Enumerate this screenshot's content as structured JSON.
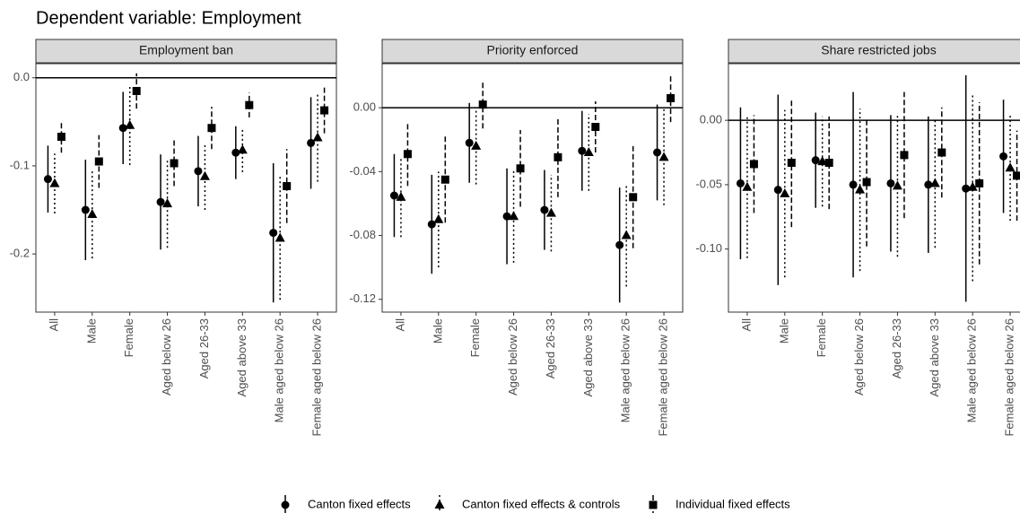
{
  "title": "Dependent variable: Employment",
  "chart_data": [
    {
      "type": "errorbar",
      "title": "Employment ban",
      "categories": [
        "All",
        "Male",
        "Female",
        "Aged below 26",
        "Aged 26-33",
        "Aged above 33",
        "Male aged below 26",
        "Female aged below 26"
      ],
      "ylim": [
        -0.266,
        0.016
      ],
      "yticks": [
        -0.2,
        -0.1,
        {
          "value": 0,
          "label": "0.0"
        }
      ],
      "hline": 0,
      "series": [
        {
          "name": "Canton fixed effects",
          "color": "#000000",
          "marker": "circle",
          "dash": "solid",
          "values": [
            -0.115,
            -0.15,
            -0.057,
            -0.141,
            -0.106,
            -0.085,
            -0.176,
            -0.074
          ],
          "errors": [
            0.038,
            0.057,
            0.041,
            0.054,
            0.04,
            0.03,
            0.079,
            0.052
          ]
        },
        {
          "name": "Canton fixed effects & controls",
          "color": "#000000",
          "marker": "triangle",
          "dash": "dotted",
          "values": [
            -0.12,
            -0.155,
            -0.054,
            -0.143,
            -0.112,
            -0.082,
            -0.182,
            -0.068
          ],
          "errors": [
            0.034,
            0.05,
            0.045,
            0.05,
            0.038,
            0.025,
            0.07,
            0.05
          ]
        },
        {
          "name": "Individual fixed effects",
          "color": "#000000",
          "marker": "square",
          "dash": "dashed",
          "values": [
            -0.067,
            -0.095,
            -0.015,
            -0.097,
            -0.057,
            -0.031,
            -0.123,
            -0.037
          ],
          "errors": [
            0.018,
            0.03,
            0.02,
            0.026,
            0.024,
            0.014,
            0.042,
            0.026
          ]
        }
      ]
    },
    {
      "type": "errorbar",
      "title": "Priority enforced",
      "categories": [
        "All",
        "Male",
        "Female",
        "Aged below 26",
        "Aged 26-33",
        "Aged above 33",
        "Male aged below 26",
        "Female aged below 26"
      ],
      "ylim": [
        -0.128,
        0.0276
      ],
      "yticks": [
        -0.12,
        -0.08,
        -0.04,
        {
          "value": 0,
          "label": "0.00"
        }
      ],
      "hline": 0,
      "series": [
        {
          "name": "Canton fixed effects",
          "color": "#000000",
          "marker": "circle",
          "dash": "solid",
          "values": [
            -0.055,
            -0.073,
            -0.022,
            -0.068,
            -0.064,
            -0.027,
            -0.086,
            -0.028
          ],
          "errors": [
            0.026,
            0.031,
            0.025,
            0.03,
            0.025,
            0.025,
            0.036,
            0.03
          ]
        },
        {
          "name": "Canton fixed effects & controls",
          "color": "#000000",
          "marker": "triangle",
          "dash": "dotted",
          "values": [
            -0.056,
            -0.07,
            -0.024,
            -0.068,
            -0.066,
            -0.028,
            -0.08,
            -0.031
          ],
          "errors": [
            0.025,
            0.03,
            0.024,
            0.029,
            0.024,
            0.024,
            0.032,
            0.03
          ]
        },
        {
          "name": "Individual fixed effects",
          "color": "#000000",
          "marker": "square",
          "dash": "dashed",
          "values": [
            -0.029,
            -0.045,
            0.002,
            -0.038,
            -0.031,
            -0.012,
            -0.056,
            0.006
          ],
          "errors": [
            0.02,
            0.027,
            0.015,
            0.024,
            0.025,
            0.016,
            0.032,
            0.015
          ]
        }
      ]
    },
    {
      "type": "errorbar",
      "title": "Share restricted jobs",
      "categories": [
        "All",
        "Male",
        "Female",
        "Aged below 26",
        "Aged 26-33",
        "Aged above 33",
        "Male aged below 26",
        "Female aged below 26"
      ],
      "ylim": [
        -0.149,
        0.044
      ],
      "yticks": [
        {
          "value": -0.1,
          "label": "-0.10"
        },
        -0.05,
        {
          "value": 0,
          "label": "0.00"
        }
      ],
      "hline": 0,
      "series": [
        {
          "name": "Canton fixed effects",
          "color": "#000000",
          "marker": "circle",
          "dash": "solid",
          "values": [
            -0.049,
            -0.054,
            -0.031,
            -0.05,
            -0.049,
            -0.05,
            -0.053,
            -0.028
          ],
          "errors": [
            0.059,
            0.074,
            0.037,
            0.072,
            0.053,
            0.053,
            0.088,
            0.044
          ]
        },
        {
          "name": "Canton fixed effects & controls",
          "color": "#000000",
          "marker": "triangle",
          "dash": "dotted",
          "values": [
            -0.052,
            -0.057,
            -0.032,
            -0.054,
            -0.051,
            -0.049,
            -0.052,
            -0.037
          ],
          "errors": [
            0.055,
            0.065,
            0.035,
            0.063,
            0.055,
            0.05,
            0.073,
            0.041
          ]
        },
        {
          "name": "Individual fixed effects",
          "color": "#000000",
          "marker": "square",
          "dash": "dashed",
          "values": [
            -0.034,
            -0.033,
            -0.033,
            -0.048,
            -0.027,
            -0.025,
            -0.049,
            -0.043
          ],
          "errors": [
            0.038,
            0.05,
            0.036,
            0.05,
            0.049,
            0.035,
            0.063,
            0.035
          ]
        }
      ]
    }
  ]
}
